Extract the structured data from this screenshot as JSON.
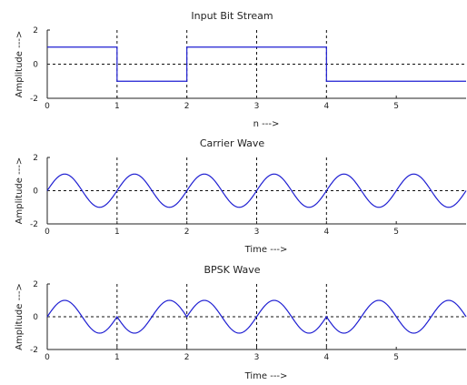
{
  "chart_data": [
    {
      "type": "line",
      "title": "Input Bit Stream",
      "xlabel": "n --->",
      "ylabel": "Amplitude --->",
      "xlim": [
        0,
        6
      ],
      "ylim": [
        -2,
        2
      ],
      "xticks": [
        "0",
        "1",
        "2",
        "3",
        "4",
        "5"
      ],
      "yticks": [
        "2",
        "0",
        "-2"
      ],
      "grid": "dashed",
      "series": [
        {
          "style": "step",
          "color": "#1f1fd2",
          "x": [
            0,
            1,
            1,
            2,
            2,
            4,
            4,
            6
          ],
          "y": [
            1,
            1,
            -1,
            -1,
            1,
            1,
            -1,
            -1
          ]
        }
      ]
    },
    {
      "type": "line",
      "title": "Carrier Wave",
      "xlabel": "Time --->",
      "ylabel": "Amplitude --->",
      "xlim": [
        0,
        6
      ],
      "ylim": [
        -2,
        2
      ],
      "xticks": [
        "0",
        "1",
        "2",
        "3",
        "4",
        "5"
      ],
      "yticks": [
        "2",
        "0",
        "-2"
      ],
      "grid": "dashed",
      "series": [
        {
          "style": "function",
          "color": "#1f1fd2",
          "formula": "y = sin(2*pi*t)",
          "amplitude": 1,
          "frequency": 1,
          "phase_flip_every": 0
        }
      ]
    },
    {
      "type": "line",
      "title": "BPSK Wave",
      "xlabel": "Time --->",
      "ylabel": "Amplitude --->",
      "xlim": [
        0,
        6
      ],
      "ylim": [
        -2,
        2
      ],
      "xticks": [
        "0",
        "1",
        "2",
        "3",
        "4",
        "5"
      ],
      "yticks": [
        "2",
        "0",
        "-2"
      ],
      "grid": "dashed",
      "series": [
        {
          "style": "function",
          "color": "#1f1fd2",
          "formula": "y = b(t)*sin(2*pi*t)",
          "amplitude": 1,
          "frequency": 1,
          "bits": [
            1,
            -1,
            1,
            1,
            -1,
            -1
          ]
        }
      ]
    }
  ]
}
